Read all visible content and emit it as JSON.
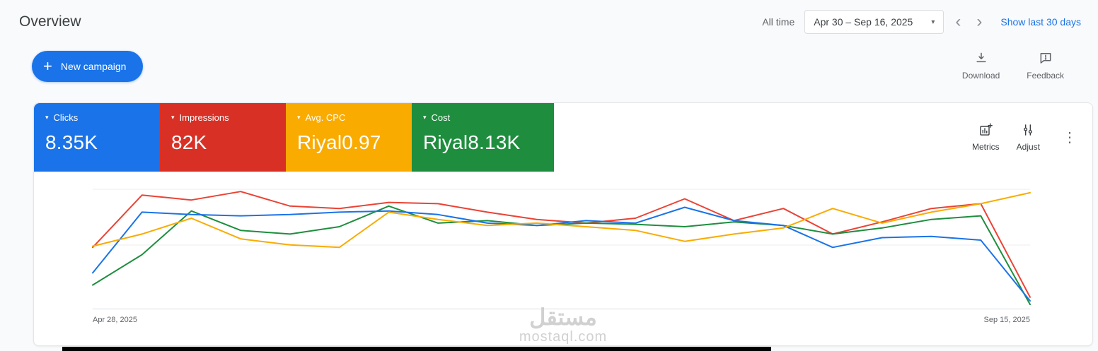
{
  "header": {
    "title": "Overview",
    "all_time_label": "All time",
    "date_range": "Apr 30 – Sep 16, 2025",
    "show_last_30_label": "Show last 30 days"
  },
  "actions": {
    "new_campaign_label": "New campaign",
    "download_label": "Download",
    "feedback_label": "Feedback"
  },
  "card_toolbar": {
    "metrics_label": "Metrics",
    "adjust_label": "Adjust"
  },
  "tiles": [
    {
      "label": "Clicks",
      "value": "8.35K",
      "color": "#1a73e8"
    },
    {
      "label": "Impressions",
      "value": "82K",
      "color": "#d93025"
    },
    {
      "label": "Avg. CPC",
      "value": "Riyal0.97",
      "color": "#f9ab00"
    },
    {
      "label": "Cost",
      "value": "Riyal8.13K",
      "color": "#1e8e3e"
    }
  ],
  "chart_data": {
    "type": "line",
    "title": "",
    "x_start_label": "Apr 28, 2025",
    "x_end_label": "Sep 15, 2025",
    "ylim": [
      0,
      100
    ],
    "grid": true,
    "legend_position": "none",
    "series": [
      {
        "name": "Impressions",
        "color": "#ea4335",
        "values": [
          51,
          94,
          90,
          97,
          85,
          83,
          88,
          87,
          80,
          74,
          71,
          75,
          91,
          73,
          83,
          62,
          72,
          83,
          87,
          10
        ]
      },
      {
        "name": "Cost",
        "color": "#1e8e3e",
        "values": [
          20,
          45,
          81,
          65,
          62,
          68,
          85,
          71,
          73,
          69,
          71,
          70,
          68,
          72,
          69,
          62,
          67,
          74,
          77,
          4
        ]
      },
      {
        "name": "Clicks",
        "color": "#1a73e8",
        "values": [
          30,
          80,
          78,
          77,
          78,
          80,
          81,
          78,
          71,
          69,
          73,
          71,
          84,
          73,
          69,
          51,
          59,
          60,
          57,
          7
        ]
      },
      {
        "name": "Avg. CPC",
        "color": "#f9ab00",
        "values": [
          52,
          62,
          75,
          58,
          53,
          51,
          80,
          74,
          69,
          71,
          68,
          65,
          56,
          62,
          67,
          83,
          71,
          80,
          87,
          96
        ]
      }
    ]
  },
  "watermark": {
    "line1": "مستقل",
    "line2": "mostaql.com"
  }
}
